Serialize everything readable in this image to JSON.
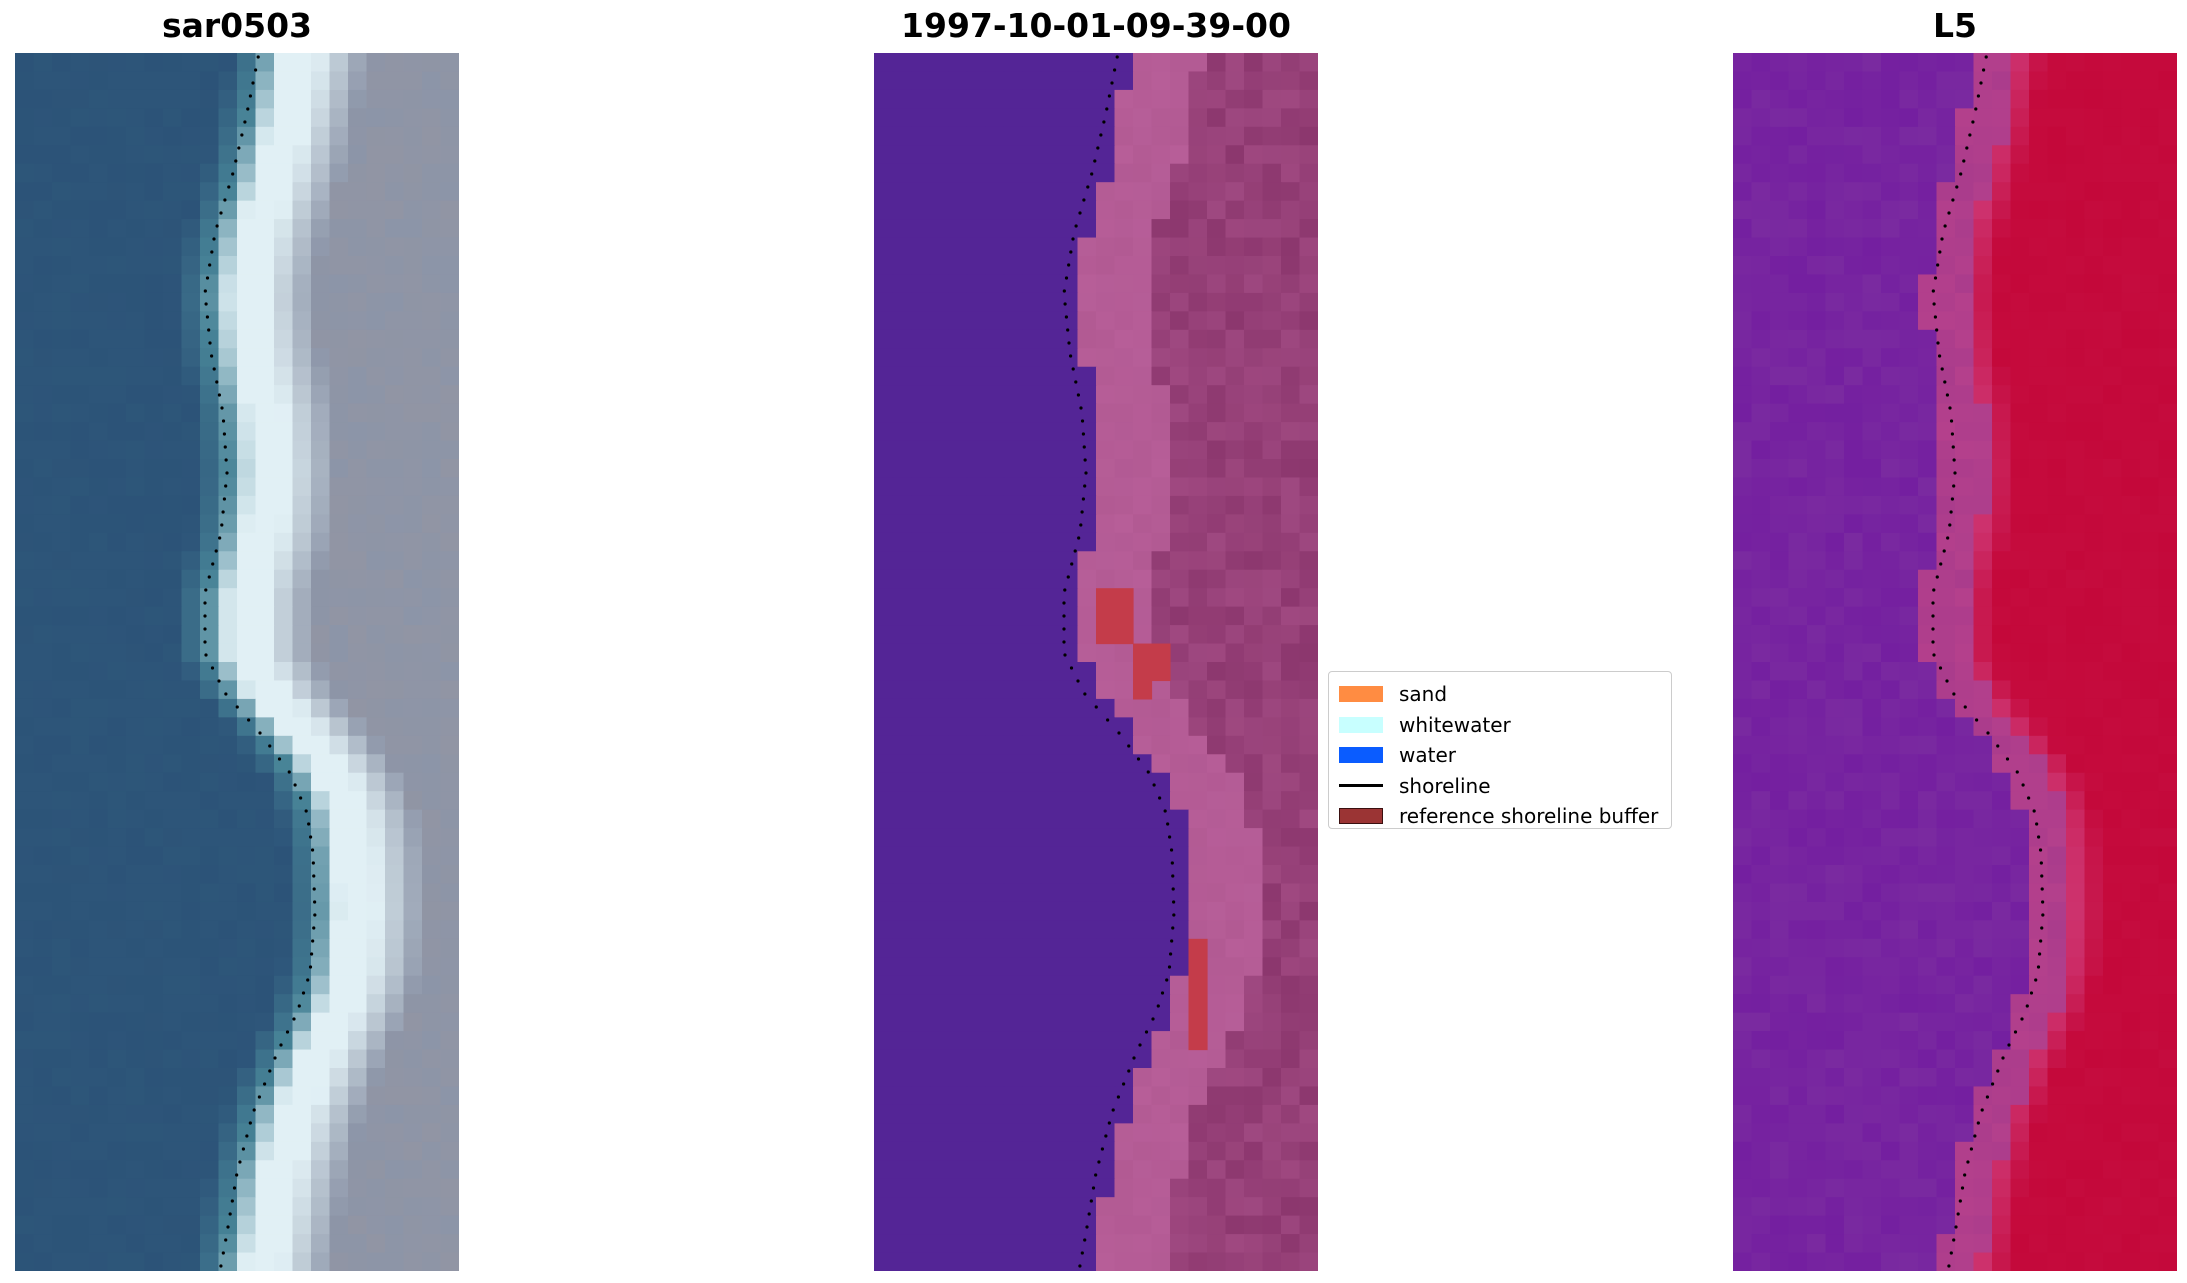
{
  "panels": [
    {
      "title": "sar0503"
    },
    {
      "title": "1997-10-01-09-39-00"
    },
    {
      "title": "L5"
    }
  ],
  "legend": {
    "items": [
      {
        "label": "sand",
        "color": "#ff8c42",
        "kind": "patch"
      },
      {
        "label": "whitewater",
        "color": "#c8ffff",
        "kind": "patch"
      },
      {
        "label": "water",
        "color": "#0a5cff",
        "kind": "patch"
      },
      {
        "label": "shoreline",
        "color": "#000000",
        "kind": "line"
      },
      {
        "label": "reference shoreline buffer",
        "color": "#9b3434",
        "kind": "patch"
      }
    ]
  },
  "colors": {
    "rgb_water": "#2c5378",
    "rgb_land": "#8c95a8",
    "class_water": "#542596",
    "class_land": "#b25a93",
    "class_buffer": "#c43c4a",
    "index_water": "#7a2aa0",
    "index_land": "#c4083a",
    "shoreline_dots": "#000000"
  },
  "shoreline_source_note": ""
}
